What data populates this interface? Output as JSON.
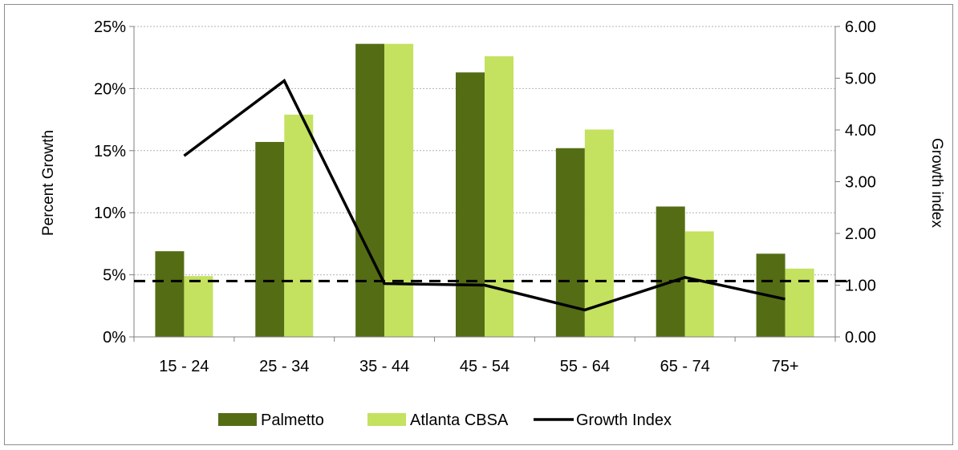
{
  "chart_data": {
    "type": "bar",
    "categories": [
      "15 - 24",
      "25 - 34",
      "35 - 44",
      "45 - 54",
      "55 - 64",
      "65 - 74",
      "75+"
    ],
    "series": [
      {
        "name": "Palmetto",
        "axis": "left",
        "kind": "bar",
        "color": "#546d15",
        "values": [
          0.069,
          0.157,
          0.236,
          0.213,
          0.152,
          0.105,
          0.067
        ]
      },
      {
        "name": "Atlanta CBSA",
        "axis": "left",
        "kind": "bar",
        "color": "#c4e160",
        "values": [
          0.049,
          0.179,
          0.236,
          0.226,
          0.167,
          0.085,
          0.055
        ]
      },
      {
        "name": "Growth Index",
        "axis": "right",
        "kind": "line",
        "color": "#000000",
        "values": [
          3.5,
          4.95,
          1.03,
          1.0,
          0.52,
          1.15,
          0.73
        ]
      }
    ],
    "y_left": {
      "label": "Percent Growth",
      "lim": [
        0,
        0.25
      ],
      "ticks": [
        0,
        0.05,
        0.1,
        0.15,
        0.2,
        0.25
      ],
      "tick_labels": [
        "0%",
        "5%",
        "10%",
        "15%",
        "20%",
        "25%"
      ]
    },
    "y_right": {
      "label": "Growth index",
      "lim": [
        0,
        6
      ],
      "ticks": [
        0,
        1,
        2,
        3,
        4,
        5,
        6
      ],
      "tick_labels": [
        "0.00",
        "1.00",
        "2.00",
        "3.00",
        "4.00",
        "5.00",
        "6.00"
      ]
    },
    "reference_line": {
      "axis": "right",
      "value": 1.08,
      "style": "dashed"
    },
    "legend": {
      "position": "bottom",
      "entries": [
        "Palmetto",
        "Atlanta CBSA",
        "Growth Index"
      ]
    },
    "grid": true
  }
}
